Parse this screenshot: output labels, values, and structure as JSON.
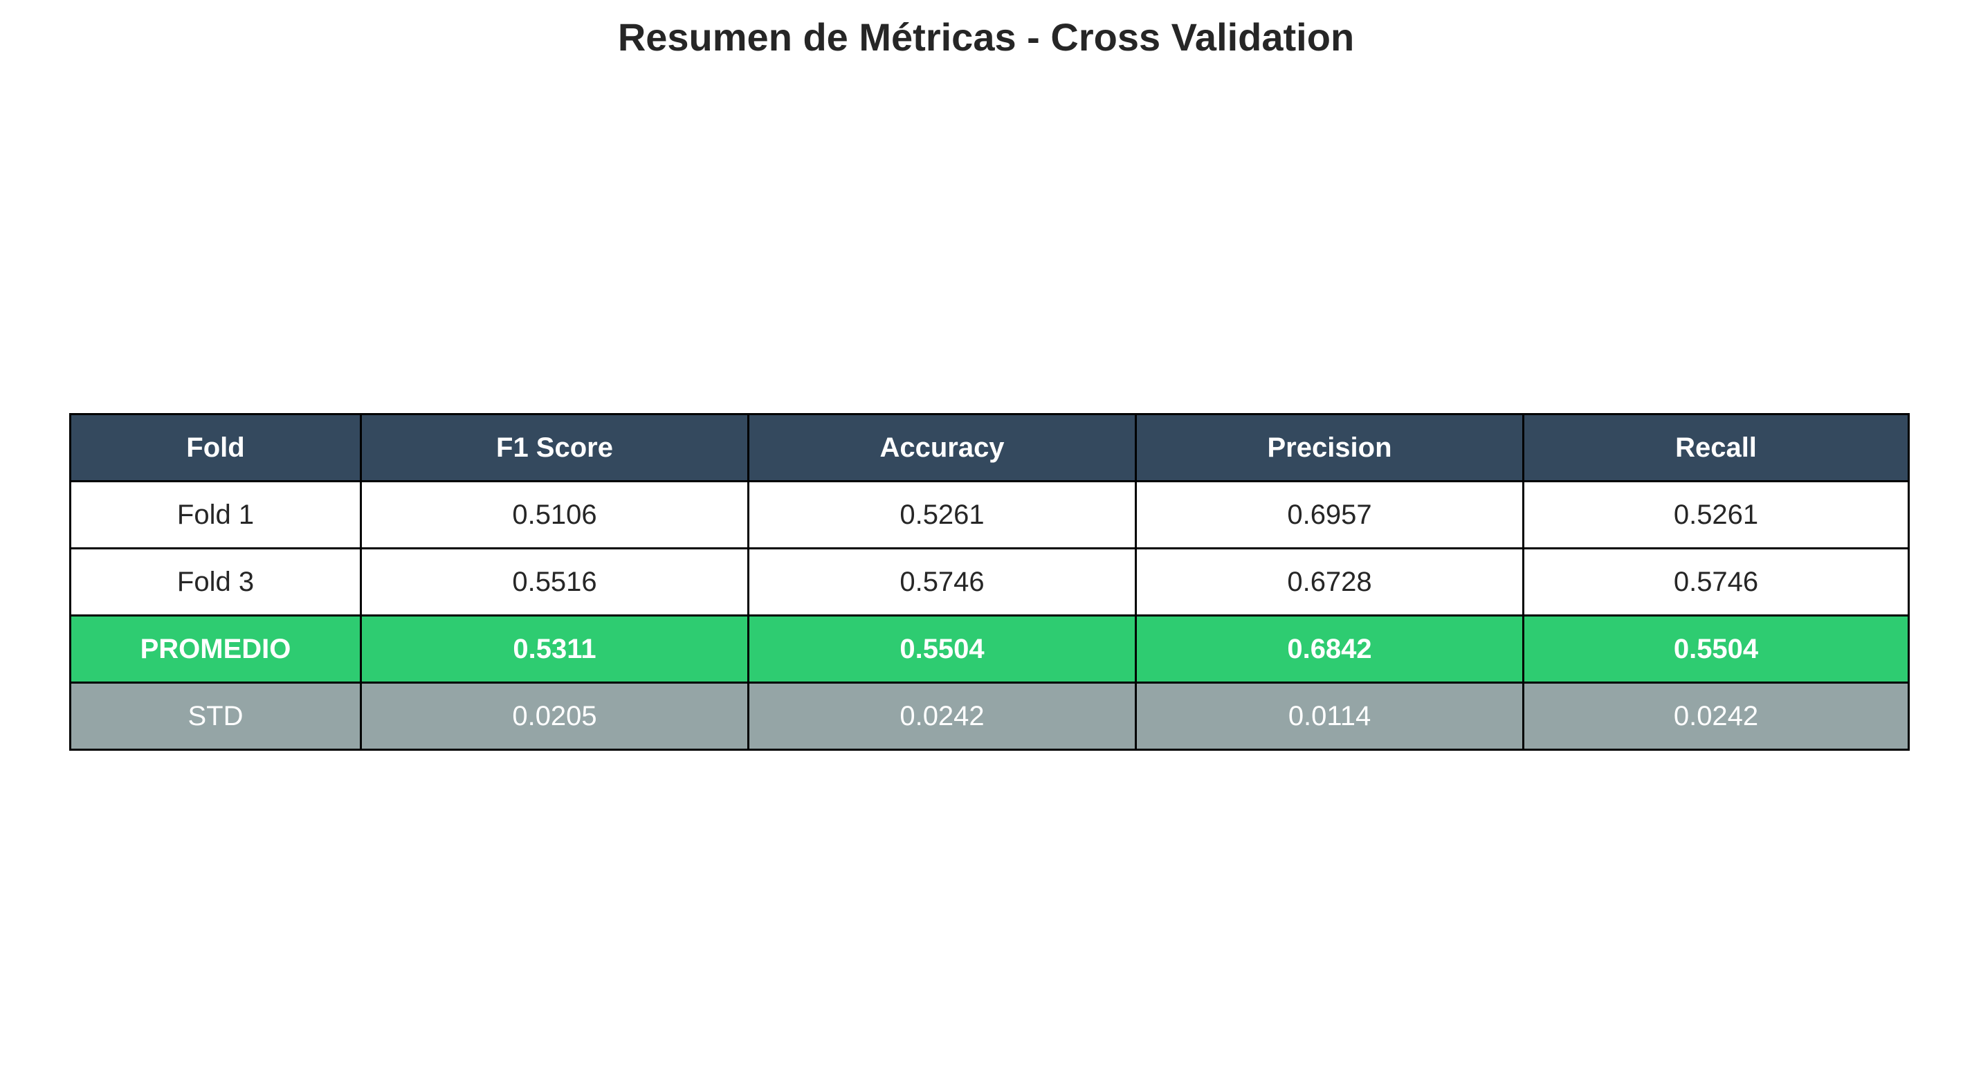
{
  "chart_data": {
    "type": "table",
    "title": "Resumen de Métricas - Cross Validation",
    "columns": [
      "Fold",
      "F1 Score",
      "Accuracy",
      "Precision",
      "Recall"
    ],
    "rows": [
      [
        "Fold 1",
        "0.5106",
        "0.5261",
        "0.6957",
        "0.5261"
      ],
      [
        "Fold 3",
        "0.5516",
        "0.5746",
        "0.6728",
        "0.5746"
      ],
      [
        "PROMEDIO",
        "0.5311",
        "0.5504",
        "0.6842",
        "0.5504"
      ],
      [
        "STD",
        "0.0205",
        "0.0242",
        "0.0114",
        "0.0242"
      ]
    ],
    "colors": {
      "header": "#34495e",
      "promedio_row": "#2ecc71",
      "std_row": "#95a5a6"
    }
  }
}
